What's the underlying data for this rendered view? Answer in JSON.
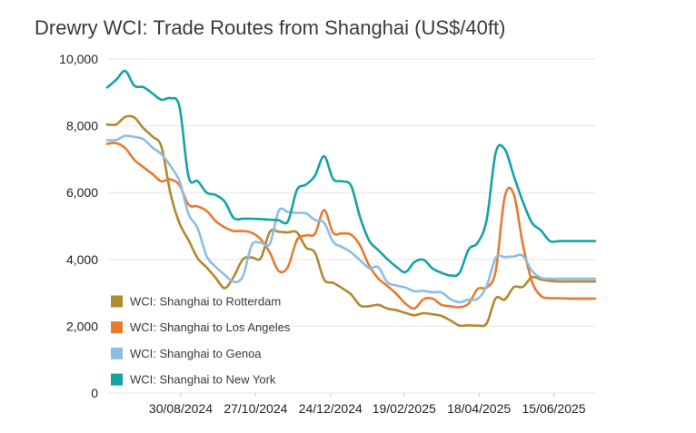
{
  "chart_data": {
    "type": "line",
    "title": "Drewry WCI: Trade Routes from Shanghai (US$/40ft)",
    "xlabel": "",
    "ylabel": "",
    "ylim": [
      0,
      10000
    ],
    "yticks": [
      0,
      2000,
      4000,
      6000,
      8000,
      10000
    ],
    "ytick_labels": [
      "0",
      "2,000",
      "4,000",
      "6,000",
      "8,000",
      "10,000"
    ],
    "xticks": [
      "30/08/2024",
      "27/10/2024",
      "24/12/2024",
      "19/02/2025",
      "18/04/2025",
      "15/06/2025"
    ],
    "grid": "horizontal",
    "legend_position": "lower-left",
    "x": [
      "04/07/2024",
      "11/07/2024",
      "18/07/2024",
      "25/07/2024",
      "01/08/2024",
      "08/08/2024",
      "15/08/2024",
      "22/08/2024",
      "29/08/2024",
      "05/09/2024",
      "12/09/2024",
      "19/09/2024",
      "26/09/2024",
      "03/10/2024",
      "10/10/2024",
      "17/10/2024",
      "24/10/2024",
      "31/10/2024",
      "07/11/2024",
      "14/11/2024",
      "21/11/2024",
      "28/11/2024",
      "05/12/2024",
      "12/12/2024",
      "19/12/2024",
      "26/12/2024",
      "02/01/2025",
      "09/01/2025",
      "16/01/2025",
      "23/01/2025",
      "30/01/2025",
      "06/02/2025",
      "13/02/2025",
      "20/02/2025",
      "27/02/2025",
      "06/03/2025",
      "13/03/2025",
      "20/03/2025",
      "27/03/2025",
      "03/04/2025",
      "10/04/2025",
      "17/04/2025",
      "24/04/2025",
      "01/05/2025",
      "08/05/2025",
      "15/05/2025",
      "22/05/2025",
      "29/05/2025",
      "05/06/2025",
      "12/06/2025",
      "19/06/2025",
      "26/06/2025",
      "03/07/2025",
      "10/07/2025",
      "17/07/2025"
    ],
    "series": [
      {
        "name": "WCI: Shanghai to Rotterdam",
        "color": "#b08a2e",
        "values": [
          8040,
          8040,
          8270,
          8250,
          7930,
          7680,
          7370,
          5980,
          5080,
          4580,
          4040,
          3760,
          3450,
          3140,
          3480,
          4000,
          4060,
          4040,
          4830,
          4830,
          4810,
          4810,
          4360,
          4200,
          3400,
          3300,
          3140,
          2950,
          2620,
          2600,
          2640,
          2530,
          2480,
          2400,
          2330,
          2390,
          2360,
          2310,
          2170,
          2020,
          2030,
          2020,
          2090,
          2840,
          2800,
          3170,
          3180,
          3470,
          3400,
          3360,
          3340,
          3340,
          3340,
          3340,
          3340
        ]
      },
      {
        "name": "WCI: Shanghai to Los Angeles",
        "color": "#e87a30",
        "values": [
          7460,
          7480,
          7330,
          6980,
          6760,
          6560,
          6340,
          6400,
          6220,
          5640,
          5590,
          5450,
          5150,
          4960,
          4850,
          4850,
          4800,
          4600,
          4200,
          3650,
          3780,
          4580,
          4720,
          4770,
          5480,
          4800,
          4780,
          4740,
          4410,
          3810,
          3430,
          3210,
          2970,
          2680,
          2530,
          2810,
          2830,
          2640,
          2600,
          2570,
          2680,
          3120,
          3160,
          3660,
          5880,
          5950,
          4450,
          3340,
          2910,
          2840,
          2840,
          2830,
          2830,
          2830,
          2830
        ]
      },
      {
        "name": "WCI: Shanghai to Genoa",
        "color": "#8dbde4",
        "values": [
          7570,
          7580,
          7700,
          7670,
          7600,
          7350,
          7150,
          6800,
          6340,
          5360,
          4940,
          4100,
          3780,
          3540,
          3330,
          3490,
          4430,
          4500,
          4470,
          5460,
          5420,
          5390,
          5380,
          5180,
          5100,
          4530,
          4370,
          4210,
          3970,
          3740,
          3770,
          3320,
          3220,
          3160,
          3050,
          3060,
          3020,
          3010,
          2810,
          2720,
          2800,
          2820,
          3210,
          4050,
          4070,
          4090,
          4110,
          3660,
          3450,
          3420,
          3420,
          3420,
          3420,
          3420,
          3420
        ]
      },
      {
        "name": "WCI: Shanghai to New York",
        "color": "#15a3a3",
        "values": [
          9150,
          9380,
          9640,
          9200,
          9160,
          8970,
          8780,
          8830,
          8560,
          6480,
          6350,
          6000,
          5930,
          5730,
          5240,
          5220,
          5220,
          5210,
          5190,
          5170,
          5140,
          6080,
          6240,
          6510,
          7090,
          6410,
          6340,
          6200,
          5250,
          4560,
          4280,
          4010,
          3780,
          3620,
          3920,
          3990,
          3730,
          3600,
          3520,
          3600,
          4300,
          4500,
          5200,
          7200,
          7300,
          6500,
          5730,
          5100,
          4870,
          4550,
          4550,
          4550,
          4550,
          4550,
          4550
        ]
      }
    ]
  }
}
